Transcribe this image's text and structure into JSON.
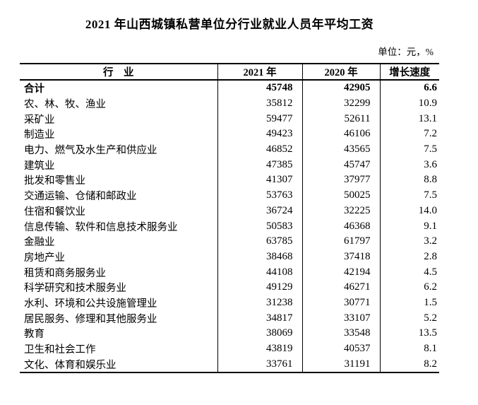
{
  "chart_data": {
    "type": "table",
    "title": "2021 年山西城镇私营单位分行业就业人员年平均工资",
    "unit_note": "单位：元，%",
    "columns": [
      "行　业",
      "2021 年",
      "2020 年",
      "增长速度"
    ],
    "rows": [
      {
        "industry": "合计",
        "y2021": 45748,
        "y2020": 42905,
        "growth": "6.6",
        "bold": true
      },
      {
        "industry": "农、林、牧、渔业",
        "y2021": 35812,
        "y2020": 32299,
        "growth": "10.9",
        "bold": false
      },
      {
        "industry": "采矿业",
        "y2021": 59477,
        "y2020": 52611,
        "growth": "13.1",
        "bold": false
      },
      {
        "industry": "制造业",
        "y2021": 49423,
        "y2020": 46106,
        "growth": "7.2",
        "bold": false
      },
      {
        "industry": "电力、燃气及水生产和供应业",
        "y2021": 46852,
        "y2020": 43565,
        "growth": "7.5",
        "bold": false
      },
      {
        "industry": "建筑业",
        "y2021": 47385,
        "y2020": 45747,
        "growth": "3.6",
        "bold": false
      },
      {
        "industry": "批发和零售业",
        "y2021": 41307,
        "y2020": 37977,
        "growth": "8.8",
        "bold": false
      },
      {
        "industry": "交通运输、仓储和邮政业",
        "y2021": 53763,
        "y2020": 50025,
        "growth": "7.5",
        "bold": false
      },
      {
        "industry": "住宿和餐饮业",
        "y2021": 36724,
        "y2020": 32225,
        "growth": "14.0",
        "bold": false
      },
      {
        "industry": "信息传输、软件和信息技术服务业",
        "y2021": 50583,
        "y2020": 46368,
        "growth": "9.1",
        "bold": false
      },
      {
        "industry": "金融业",
        "y2021": 63785,
        "y2020": 61797,
        "growth": "3.2",
        "bold": false
      },
      {
        "industry": "房地产业",
        "y2021": 38468,
        "y2020": 37418,
        "growth": "2.8",
        "bold": false
      },
      {
        "industry": "租赁和商务服务业",
        "y2021": 44108,
        "y2020": 42194,
        "growth": "4.5",
        "bold": false
      },
      {
        "industry": "科学研究和技术服务业",
        "y2021": 49129,
        "y2020": 46271,
        "growth": "6.2",
        "bold": false
      },
      {
        "industry": "水利、环境和公共设施管理业",
        "y2021": 31238,
        "y2020": 30771,
        "growth": "1.5",
        "bold": false
      },
      {
        "industry": "居民服务、修理和其他服务业",
        "y2021": 34817,
        "y2020": 33107,
        "growth": "5.2",
        "bold": false
      },
      {
        "industry": "教育",
        "y2021": 38069,
        "y2020": 33548,
        "growth": "13.5",
        "bold": false
      },
      {
        "industry": "卫生和社会工作",
        "y2021": 43819,
        "y2020": 40537,
        "growth": "8.1",
        "bold": false
      },
      {
        "industry": "文化、体育和娱乐业",
        "y2021": 33761,
        "y2020": 31191,
        "growth": "8.2",
        "bold": false
      }
    ]
  }
}
